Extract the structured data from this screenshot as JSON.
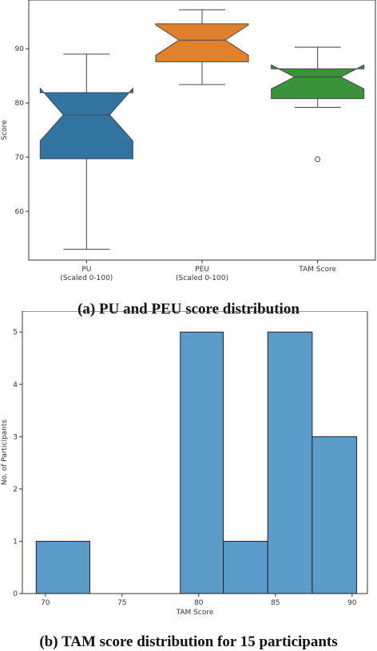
{
  "captions": {
    "a": "(a) PU and PEU score distribution",
    "b": "(b) TAM score distribution for 15 participants"
  },
  "chart_data": [
    {
      "type": "boxplot",
      "ylabel": "Score",
      "ylim": [
        51,
        99
      ],
      "yticks": [
        60,
        70,
        80,
        90
      ],
      "notched": true,
      "categories": [
        {
          "label": [
            "PU",
            "(Scaled 0-100)"
          ],
          "color": "#3274a1",
          "min": 53,
          "q1": 69.7,
          "median": 77.8,
          "q3": 81.9,
          "max": 89,
          "notch": [
            73.0,
            82.7
          ],
          "outliers": []
        },
        {
          "label": [
            "PEU",
            "(Scaled 0-100)"
          ],
          "color": "#e1812c",
          "min": 83.4,
          "q1": 87.6,
          "median": 91.6,
          "q3": 94.6,
          "max": 97.2,
          "notch": [
            88.8,
            94.4
          ],
          "outliers": []
        },
        {
          "label": [
            "TAM Score"
          ],
          "color": "#3a923a",
          "min": 79.2,
          "q1": 80.8,
          "median": 84.8,
          "q3": 86.3,
          "max": 90.3,
          "notch": [
            82.6,
            87.0
          ],
          "outliers": [
            69.6
          ]
        }
      ]
    },
    {
      "type": "histogram",
      "xlabel": "TAM Score",
      "ylabel": "No. of Participants",
      "xlim": [
        68.5,
        91
      ],
      "ylim": [
        0,
        5.4
      ],
      "xticks": [
        70,
        75,
        80,
        85,
        90
      ],
      "yticks": [
        0,
        1,
        2,
        3,
        4,
        5
      ],
      "color": "#5a9bc9",
      "bins": [
        {
          "start": 69.4,
          "end": 72.9,
          "count": 1
        },
        {
          "start": 72.9,
          "end": 75.8,
          "count": 0
        },
        {
          "start": 75.8,
          "end": 78.8,
          "count": 0
        },
        {
          "start": 78.8,
          "end": 81.6,
          "count": 5
        },
        {
          "start": 81.6,
          "end": 84.5,
          "count": 1
        },
        {
          "start": 84.5,
          "end": 87.4,
          "count": 5
        },
        {
          "start": 87.4,
          "end": 90.3,
          "count": 3
        }
      ]
    }
  ]
}
